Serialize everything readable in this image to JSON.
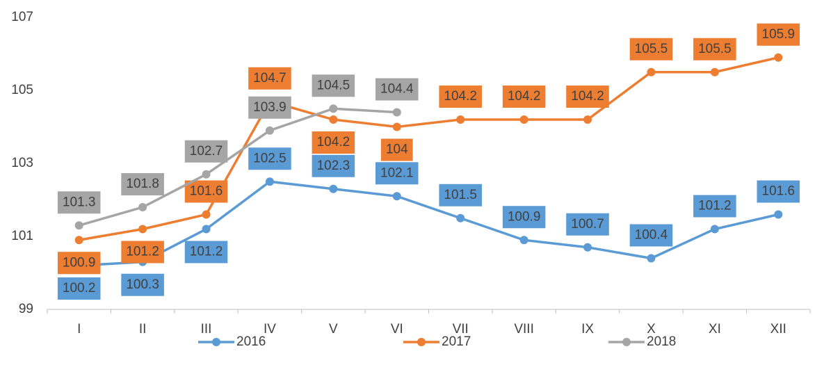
{
  "chart_data": {
    "type": "line",
    "categories": [
      "I",
      "II",
      "III",
      "IV",
      "V",
      "VI",
      "VII",
      "VIII",
      "IX",
      "X",
      "XI",
      "XII"
    ],
    "series": [
      {
        "name": "2016",
        "color": "#5b9bd5",
        "values": [
          100.2,
          100.3,
          101.2,
          102.5,
          102.3,
          102.1,
          101.5,
          100.9,
          100.7,
          100.4,
          101.2,
          101.6
        ]
      },
      {
        "name": "2017",
        "color": "#ed7d31",
        "values": [
          100.9,
          101.2,
          101.6,
          104.7,
          104.2,
          104,
          104.2,
          104.2,
          104.2,
          105.5,
          105.5,
          105.9
        ]
      },
      {
        "name": "2018",
        "color": "#a5a5a5",
        "values": [
          101.3,
          101.8,
          102.7,
          103.9,
          104.5,
          104.4,
          null,
          null,
          null,
          null,
          null,
          null
        ]
      }
    ],
    "ylim": [
      99,
      107
    ],
    "yticks": [
      99,
      101,
      103,
      105,
      107
    ],
    "grid": false,
    "legend": "bottom"
  }
}
